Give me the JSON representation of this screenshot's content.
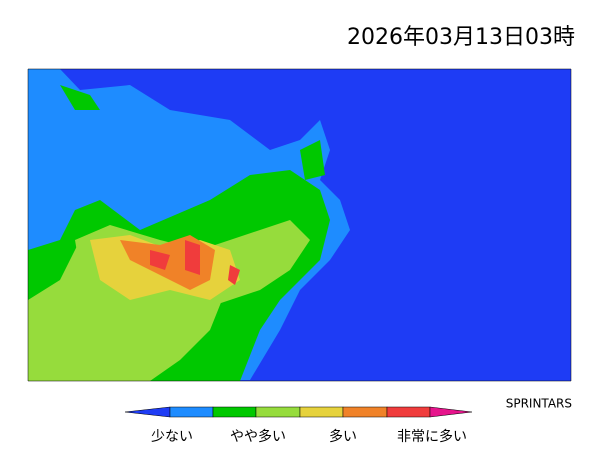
{
  "header": {
    "title": "2026年03月13日03時",
    "credit": "SPRINTARS"
  },
  "legend": {
    "labels": [
      "少ない",
      "やや多い",
      "多い",
      "非常に多い"
    ]
  }
}
